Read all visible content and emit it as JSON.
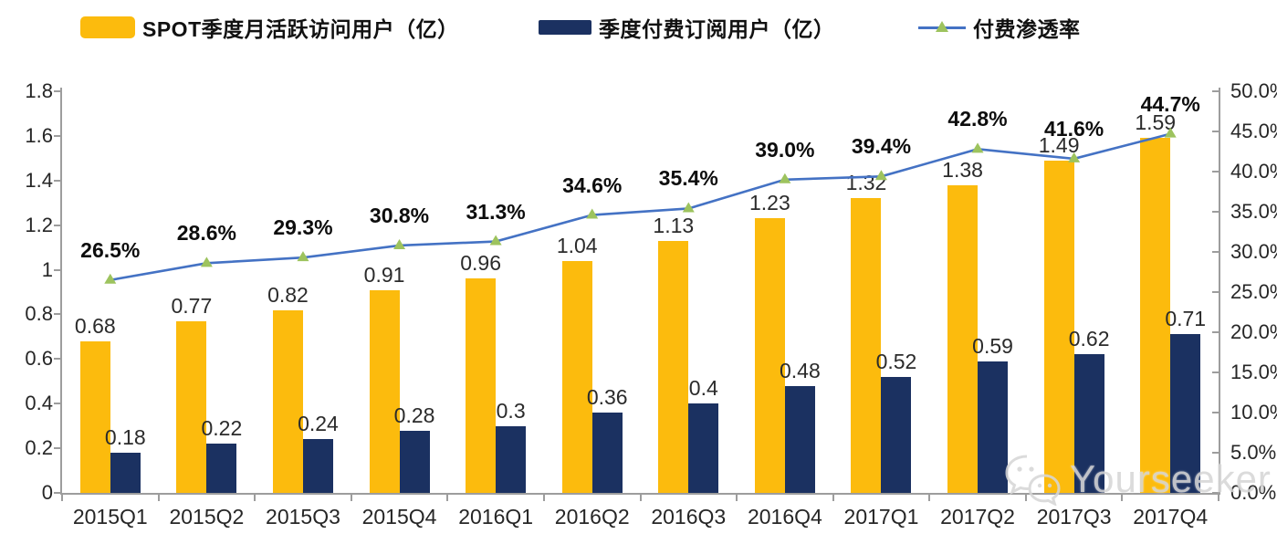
{
  "chart_data": {
    "type": "combo-bar-line",
    "categories": [
      "2015Q1",
      "2015Q2",
      "2015Q3",
      "2015Q4",
      "2016Q1",
      "2016Q2",
      "2016Q3",
      "2016Q4",
      "2017Q1",
      "2017Q2",
      "2017Q3",
      "2017Q4"
    ],
    "series": [
      {
        "name": "SPOT季度月活跃访问用户（亿）",
        "type": "bar",
        "axis": "left",
        "color": "#FCBB0D",
        "values": [
          0.68,
          0.77,
          0.82,
          0.91,
          0.96,
          1.04,
          1.13,
          1.23,
          1.32,
          1.38,
          1.49,
          1.59
        ],
        "labels": [
          "0.68",
          "0.77",
          "0.82",
          "0.91",
          "0.96",
          "1.04",
          "1.13",
          "1.23",
          "1.32",
          "1.38",
          "1.49",
          "1.59"
        ]
      },
      {
        "name": "季度付费订阅用户（亿）",
        "type": "bar",
        "axis": "left",
        "color": "#1B3161",
        "values": [
          0.18,
          0.22,
          0.24,
          0.28,
          0.3,
          0.36,
          0.4,
          0.48,
          0.52,
          0.59,
          0.62,
          0.71
        ],
        "labels": [
          "0.18",
          "0.22",
          "0.24",
          "0.28",
          "0.3",
          "0.36",
          "0.4",
          "0.48",
          "0.52",
          "0.59",
          "0.62",
          "0.71"
        ]
      },
      {
        "name": "付费渗透率",
        "type": "line",
        "axis": "right",
        "color": "#4472C4",
        "marker": "triangle",
        "marker_color": "#9DC35E",
        "values": [
          26.5,
          28.6,
          29.3,
          30.8,
          31.3,
          34.6,
          35.4,
          39.0,
          39.4,
          42.8,
          41.6,
          44.7
        ],
        "labels": [
          "26.5%",
          "28.6%",
          "29.3%",
          "30.8%",
          "31.3%",
          "34.6%",
          "35.4%",
          "39.0%",
          "39.4%",
          "42.8%",
          "41.6%",
          "44.7%"
        ]
      }
    ],
    "left_axis": {
      "min": 0,
      "max": 1.8,
      "tick_labels": [
        "1.8",
        "1.6",
        "1.4",
        "1.2",
        "1",
        "0.8",
        "0.6",
        "0.4",
        "0.2",
        "0"
      ]
    },
    "right_axis": {
      "min": 0,
      "max": 50,
      "tick_labels": [
        "50.0%",
        "45.0%",
        "40.0%",
        "35.0%",
        "30.0%",
        "25.0%",
        "20.0%",
        "15.0%",
        "10.0%",
        "5.0%",
        "0.0%"
      ]
    },
    "grid": false,
    "legend_position": "top"
  },
  "watermark": {
    "text": "Yourseeker",
    "icon": "wechat-icon"
  }
}
